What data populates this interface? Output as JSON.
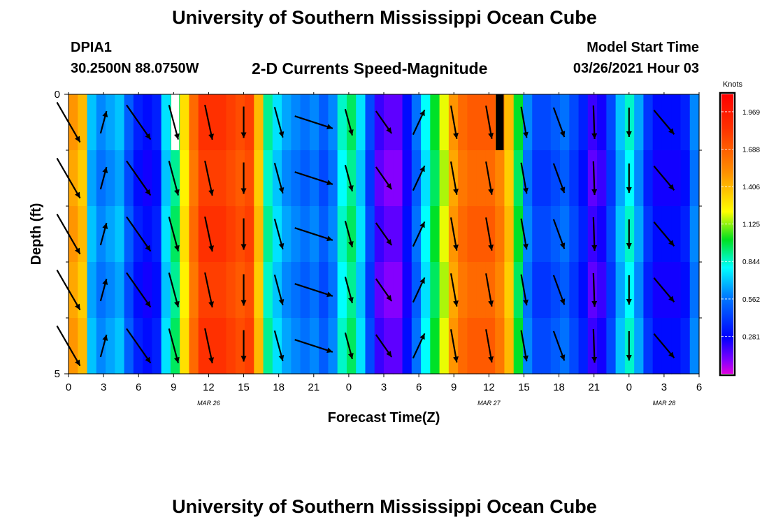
{
  "header": {
    "title": "University of Southern Mississippi Ocean Cube",
    "station": "DPIA1",
    "location": "30.2500N 88.0750W",
    "subtitle": "2-D Currents Speed-Magnitude",
    "start_label": "Model Start Time",
    "start_value": "03/26/2021 Hour 03"
  },
  "footer": {
    "title": "University of Southern Mississippi Ocean Cube"
  },
  "chart_data": {
    "type": "heatmap",
    "title": "2-D Currents Speed-Magnitude",
    "xlabel": "Forecast Time(Z)",
    "ylabel": "Depth (ft)",
    "x_range_hours": [
      0,
      54
    ],
    "x_ticks": [
      "0",
      "3",
      "6",
      "9",
      "12",
      "15",
      "18",
      "21",
      "0",
      "3",
      "6",
      "9",
      "12",
      "15",
      "18",
      "21",
      "0",
      "3",
      "6"
    ],
    "date_labels": [
      {
        "text": "MAR 26",
        "hour": 12
      },
      {
        "text": "MAR 27",
        "hour": 36
      },
      {
        "text": "MAR 28",
        "hour": 51
      }
    ],
    "y_ticks": [
      "0",
      "5"
    ],
    "ylim": [
      0,
      5
    ],
    "colorbar": {
      "label": "Knots",
      "ticks": [
        "1.969",
        "1.688",
        "1.406",
        "1.125",
        "0.844",
        "0.562",
        "0.281"
      ],
      "range": [
        0,
        2.1
      ]
    },
    "depth_rows": 5,
    "speed_columns_knots": [
      1.5,
      1.4,
      0.7,
      0.6,
      0.65,
      0.7,
      0.5,
      0.35,
      0.3,
      0.35,
      0.75,
      0.95,
      1.3,
      1.65,
      1.85,
      1.85,
      1.85,
      1.8,
      1.75,
      1.8,
      1.4,
      0.9,
      0.75,
      0.65,
      0.6,
      0.55,
      0.6,
      0.5,
      0.6,
      0.85,
      0.95,
      0.75,
      0.45,
      0.2,
      0.15,
      0.15,
      0.3,
      0.55,
      0.8,
      1.0,
      1.2,
      1.5,
      1.65,
      1.7,
      1.7,
      1.7,
      1.6,
      1.4,
      1.0,
      0.6,
      0.45,
      0.45,
      0.5,
      0.55,
      0.45,
      0.35,
      0.2,
      0.25,
      0.45,
      0.7,
      0.85,
      0.65,
      0.4,
      0.3,
      0.3,
      0.3,
      0.35,
      0.6
    ],
    "dir_change_column": 18,
    "anomaly_columns_top": [
      {
        "column": 11,
        "color": "#ffffff"
      },
      {
        "column": 46,
        "color": "#000000"
      }
    ],
    "vector_arrows": [
      {
        "hour": 0,
        "dir_deg": 150,
        "len_knots": 1.1
      },
      {
        "hour": 3,
        "dir_deg": 15,
        "len_knots": 0.55
      },
      {
        "hour": 6,
        "dir_deg": 145,
        "len_knots": 1.0
      },
      {
        "hour": 9,
        "dir_deg": 165,
        "len_knots": 0.85
      },
      {
        "hour": 12,
        "dir_deg": 168,
        "len_knots": 0.85
      },
      {
        "hour": 15,
        "dir_deg": 180,
        "len_knots": 0.75
      },
      {
        "hour": 18,
        "dir_deg": 165,
        "len_knots": 0.75
      },
      {
        "hour": 21,
        "dir_deg": 108,
        "len_knots": 0.95
      },
      {
        "hour": 24,
        "dir_deg": 165,
        "len_knots": 0.65
      },
      {
        "hour": 27,
        "dir_deg": 145,
        "len_knots": 0.65
      },
      {
        "hour": 30,
        "dir_deg": 25,
        "len_knots": 0.65
      },
      {
        "hour": 33,
        "dir_deg": 170,
        "len_knots": 0.8
      },
      {
        "hour": 36,
        "dir_deg": 170,
        "len_knots": 0.8
      },
      {
        "hour": 39,
        "dir_deg": 170,
        "len_knots": 0.75
      },
      {
        "hour": 42,
        "dir_deg": 160,
        "len_knots": 0.75
      },
      {
        "hour": 45,
        "dir_deg": 178,
        "len_knots": 0.8
      },
      {
        "hour": 48,
        "dir_deg": 180,
        "len_knots": 0.7
      },
      {
        "hour": 51,
        "dir_deg": 140,
        "len_knots": 0.75
      },
      {
        "hour": 54,
        "dir_deg": 0,
        "len_knots": 0.0
      }
    ],
    "grid": false,
    "legend": "right colorbar"
  }
}
